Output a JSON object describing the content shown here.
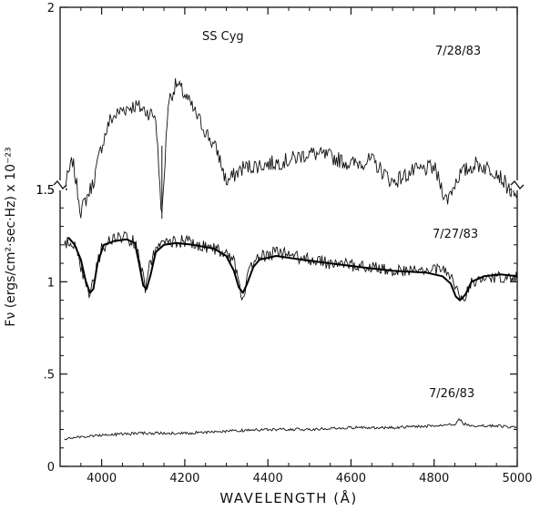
{
  "chart_data": {
    "type": "line",
    "title": "SS Cyg",
    "xlabel": "WAVELENGTH (Å)",
    "ylabel": "Fν (ergs/cm²·sec·Hz) x 10⁻²³",
    "xlim": [
      3900,
      5000
    ],
    "x_ticks": [
      4000,
      4200,
      4400,
      4600,
      4800,
      5000
    ],
    "x_tick_labels": [
      "4000",
      "4200",
      "4400",
      "4600",
      "4800",
      "5000"
    ],
    "lower_panel": {
      "ylim": [
        0,
        1.5
      ],
      "y_ticks": [
        0,
        0.5,
        1,
        1.5
      ],
      "y_tick_labels": [
        "0",
        ".5",
        "1",
        "1.5"
      ]
    },
    "upper_panel": {
      "ylim": [
        1.5,
        2
      ],
      "y_ticks": [
        1.5,
        2
      ],
      "y_tick_labels": [
        "1.5",
        "2"
      ]
    },
    "annotations": [
      "7/28/83",
      "7/27/83",
      "7/26/83"
    ],
    "series": [
      {
        "name": "7/28/83",
        "panel": "upper",
        "x": [
          3910,
          3930,
          3950,
          3980,
          4000,
          4020,
          4050,
          4080,
          4100,
          4130,
          4145,
          4160,
          4180,
          4200,
          4220,
          4250,
          4280,
          4300,
          4340,
          4400,
          4450,
          4500,
          4550,
          4600,
          4650,
          4700,
          4750,
          4800,
          4830,
          4860,
          4900,
          4950,
          5000
        ],
        "y": [
          1.5,
          1.58,
          1.44,
          1.52,
          1.62,
          1.69,
          1.72,
          1.73,
          1.72,
          1.7,
          1.42,
          1.74,
          1.79,
          1.76,
          1.72,
          1.66,
          1.6,
          1.52,
          1.56,
          1.57,
          1.58,
          1.6,
          1.59,
          1.57,
          1.58,
          1.52,
          1.55,
          1.56,
          1.47,
          1.54,
          1.57,
          1.55,
          1.47
        ]
      },
      {
        "name": "7/27/83",
        "panel": "lower",
        "x": [
          3910,
          3930,
          3950,
          3970,
          3985,
          4000,
          4030,
          4060,
          4080,
          4095,
          4105,
          4115,
          4130,
          4160,
          4200,
          4250,
          4290,
          4320,
          4335,
          4345,
          4360,
          4380,
          4420,
          4480,
          4550,
          4600,
          4650,
          4700,
          4750,
          4800,
          4830,
          4850,
          4862,
          4875,
          4890,
          4920,
          4950,
          5000
        ],
        "y": [
          1.2,
          1.22,
          1.08,
          0.92,
          1.05,
          1.18,
          1.24,
          1.24,
          1.21,
          1.08,
          0.96,
          1.08,
          1.17,
          1.22,
          1.22,
          1.19,
          1.17,
          1.1,
          0.93,
          0.96,
          1.09,
          1.13,
          1.16,
          1.13,
          1.1,
          1.09,
          1.08,
          1.06,
          1.06,
          1.07,
          1.05,
          0.99,
          0.9,
          0.92,
          0.99,
          1.02,
          1.03,
          1.03
        ]
      },
      {
        "name": "7/26/83",
        "panel": "lower",
        "x": [
          3910,
          4000,
          4100,
          4200,
          4300,
          4400,
          4500,
          4600,
          4700,
          4800,
          4850,
          4860,
          4870,
          4900,
          4950,
          5000
        ],
        "y": [
          0.15,
          0.17,
          0.18,
          0.18,
          0.19,
          0.2,
          0.2,
          0.21,
          0.21,
          0.22,
          0.23,
          0.26,
          0.23,
          0.22,
          0.22,
          0.21
        ]
      }
    ],
    "model_fit": {
      "panel": "lower",
      "x": [
        3920,
        3935,
        3950,
        3962,
        3972,
        3980,
        3990,
        4005,
        4030,
        4060,
        4080,
        4090,
        4100,
        4108,
        4118,
        4130,
        4150,
        4180,
        4220,
        4270,
        4300,
        4318,
        4330,
        4340,
        4350,
        4365,
        4380,
        4420,
        4480,
        4550,
        4620,
        4700,
        4780,
        4820,
        4840,
        4852,
        4862,
        4875,
        4890,
        4920,
        4960,
        5000
      ],
      "y": [
        1.24,
        1.2,
        1.12,
        1.0,
        0.94,
        0.96,
        1.1,
        1.2,
        1.22,
        1.23,
        1.21,
        1.1,
        0.98,
        0.96,
        1.04,
        1.16,
        1.2,
        1.21,
        1.2,
        1.18,
        1.14,
        1.06,
        0.97,
        0.94,
        0.99,
        1.08,
        1.12,
        1.14,
        1.12,
        1.1,
        1.08,
        1.06,
        1.05,
        1.03,
        0.99,
        0.92,
        0.9,
        0.93,
        1.0,
        1.03,
        1.04,
        1.03
      ]
    }
  }
}
